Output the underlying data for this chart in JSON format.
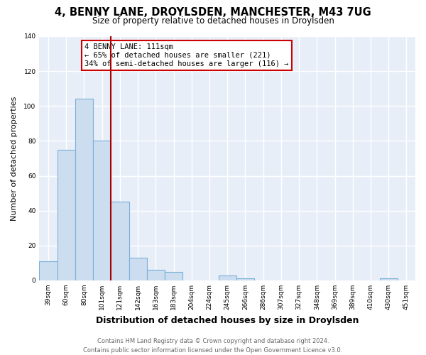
{
  "title": "4, BENNY LANE, DROYLSDEN, MANCHESTER, M43 7UG",
  "subtitle": "Size of property relative to detached houses in Droylsden",
  "xlabel": "Distribution of detached houses by size in Droylsden",
  "ylabel": "Number of detached properties",
  "bar_color": "#ccddf0",
  "bar_edge_color": "#7ab0d8",
  "plot_bg_color": "#e8eef8",
  "fig_bg_color": "#ffffff",
  "grid_color": "#ffffff",
  "ylim": [
    0,
    140
  ],
  "yticks": [
    0,
    20,
    40,
    60,
    80,
    100,
    120,
    140
  ],
  "bins": [
    "39sqm",
    "60sqm",
    "80sqm",
    "101sqm",
    "121sqm",
    "142sqm",
    "163sqm",
    "183sqm",
    "204sqm",
    "224sqm",
    "245sqm",
    "266sqm",
    "286sqm",
    "307sqm",
    "327sqm",
    "348sqm",
    "369sqm",
    "389sqm",
    "410sqm",
    "430sqm",
    "451sqm"
  ],
  "values": [
    11,
    75,
    104,
    80,
    45,
    13,
    6,
    5,
    0,
    0,
    3,
    1,
    0,
    0,
    0,
    0,
    0,
    0,
    0,
    1,
    0
  ],
  "vline_idx": 3.5,
  "vline_color": "#aa0000",
  "annotation_text": "4 BENNY LANE: 111sqm\n← 65% of detached houses are smaller (221)\n34% of semi-detached houses are larger (116) →",
  "annotation_box_color": "#ffffff",
  "annotation_box_edge_color": "#cc0000",
  "footer_line1": "Contains HM Land Registry data © Crown copyright and database right 2024.",
  "footer_line2": "Contains public sector information licensed under the Open Government Licence v3.0.",
  "footer_color": "#666666",
  "title_fontsize": 10.5,
  "subtitle_fontsize": 8.5,
  "xlabel_fontsize": 9,
  "ylabel_fontsize": 8,
  "tick_fontsize": 6.5,
  "annotation_fontsize": 7.5,
  "footer_fontsize": 6
}
